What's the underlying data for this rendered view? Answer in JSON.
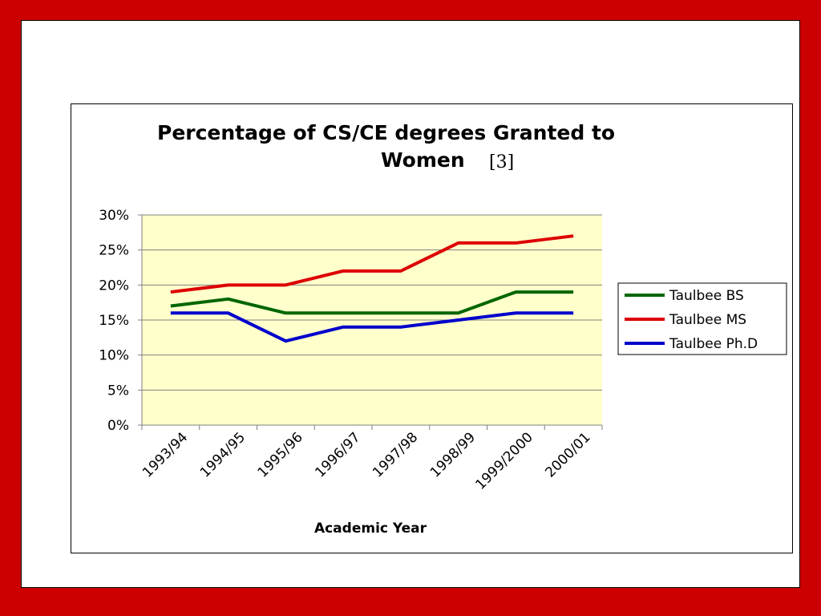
{
  "colors": {
    "slide_border": "#cc0000",
    "plot_background": "#ffffcc",
    "gridline": "#808080"
  },
  "chart_data": {
    "type": "line",
    "title_line1": "Percentage of CS/CE degrees Granted to",
    "title_line2": "Women",
    "title_ref": "[3]",
    "xlabel": "Academic Year",
    "ylabel": "",
    "categories": [
      "1993/94",
      "1994/95",
      "1995/96",
      "1996/97",
      "1997/98",
      "1998/99",
      "1999/2000",
      "2000/01"
    ],
    "ylim": [
      0,
      30
    ],
    "yticks": [
      0,
      5,
      10,
      15,
      20,
      25,
      30
    ],
    "ytick_labels": [
      "0%",
      "5%",
      "10%",
      "15%",
      "20%",
      "25%",
      "30%"
    ],
    "grid": true,
    "legend_position": "right",
    "series": [
      {
        "name": "Taulbee BS",
        "color": "#006600",
        "values": [
          17,
          18,
          16,
          16,
          16,
          16,
          19,
          19
        ]
      },
      {
        "name": "Taulbee MS",
        "color": "#dd0000",
        "values": [
          19,
          20,
          20,
          22,
          22,
          26,
          26,
          27
        ]
      },
      {
        "name": "Taulbee Ph.D",
        "color": "#0000cc",
        "values": [
          16,
          16,
          12,
          14,
          14,
          15,
          16,
          16
        ]
      }
    ]
  }
}
